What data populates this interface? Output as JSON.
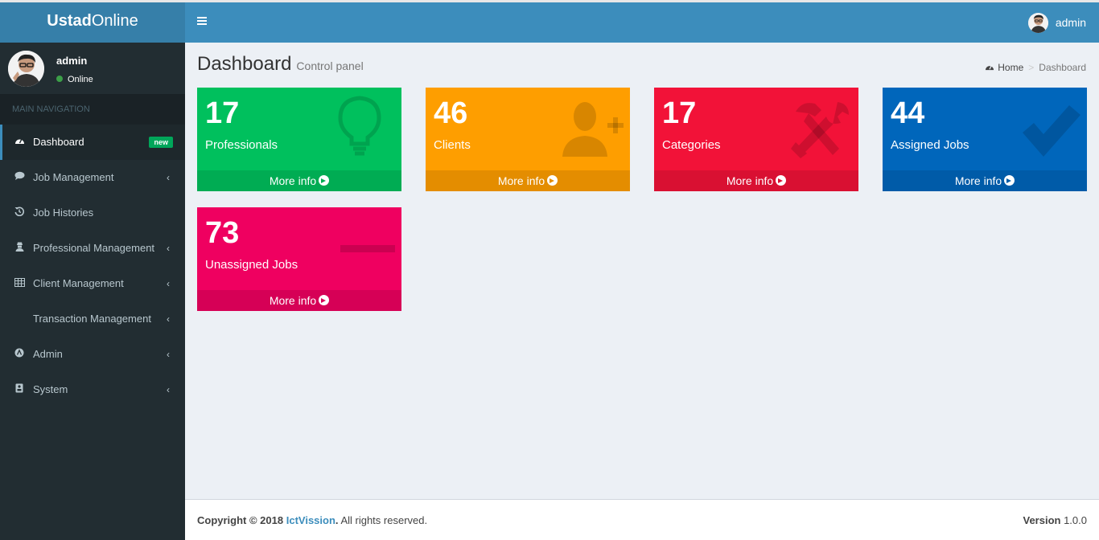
{
  "app": {
    "logo_bold": "Ustad",
    "logo_rest": "Online"
  },
  "user": {
    "name": "admin",
    "status": "Online"
  },
  "sidebar": {
    "header": "MAIN NAVIGATION",
    "items": [
      {
        "label": "Dashboard",
        "icon": "dashboard-icon",
        "badge": "new",
        "active": true
      },
      {
        "label": "Job Management",
        "icon": "comment-icon",
        "chevron": true
      },
      {
        "label": "Job Histories",
        "icon": "history-icon"
      },
      {
        "label": "Professional Management",
        "icon": "user-secret-icon",
        "chevron": true
      },
      {
        "label": "Client Management",
        "icon": "table-icon",
        "chevron": true
      },
      {
        "label": "Transaction Management",
        "icon": "",
        "chevron": true
      },
      {
        "label": "Admin",
        "icon": "admin-icon",
        "chevron": true
      },
      {
        "label": "System",
        "icon": "system-icon",
        "chevron": true
      }
    ]
  },
  "header": {
    "title": "Dashboard",
    "subtitle": "Control panel",
    "breadcrumb_home": "Home",
    "breadcrumb_current": "Dashboard"
  },
  "boxes": [
    {
      "value": "17",
      "label": "Professionals",
      "footer": "More info",
      "color": "#00c05d",
      "icon": "lightbulb-icon"
    },
    {
      "value": "46",
      "label": "Clients",
      "footer": "More info",
      "color": "#fe9e00",
      "icon": "user-plus-icon"
    },
    {
      "value": "17",
      "label": "Categories",
      "footer": "More info",
      "color": "#f21238",
      "icon": "wrench-tools-icon"
    },
    {
      "value": "44",
      "label": "Assigned Jobs",
      "footer": "More info",
      "color": "#0066bb",
      "icon": "check-icon"
    },
    {
      "value": "73",
      "label": "Unassigned Jobs",
      "footer": "More info",
      "color": "#ef0060",
      "icon": "minus-icon"
    }
  ],
  "footer": {
    "copyright": "Copyright © 2018",
    "company": "IctVission",
    "rights": ". All rights reserved.",
    "version_label": "Version",
    "version": "1.0.0"
  }
}
